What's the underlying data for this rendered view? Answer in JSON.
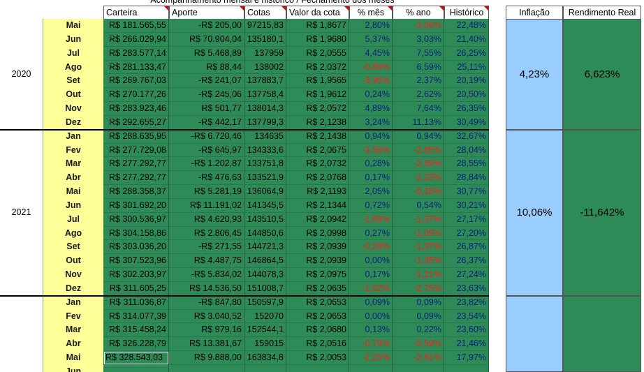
{
  "title": "Acompanhamento mensal e histórico / Fechamento dos meses",
  "headers": [
    "Carteira",
    "Aporte",
    "Cotas",
    "Valor da cota",
    "% mês",
    "% ano",
    "Histórico"
  ],
  "side_headers": [
    "Inflação",
    "Rendimento Real"
  ],
  "groups": [
    {
      "year": "2020",
      "inflacao": "4,23%",
      "rendimento_real": "6,623%",
      "rows": [
        {
          "month": "Mai",
          "cells": [
            "R$ 181.565,55",
            "-R$ 205,00",
            "97215,83",
            "R$ 1,8677",
            "2,80%",
            "-3,06%",
            "22,48%"
          ]
        },
        {
          "month": "Jun",
          "cells": [
            "R$ 266.029,94",
            "R$ 70.904,04",
            "135180,1",
            "R$ 1,9680",
            "5,37%",
            "3,03%",
            "21,40%"
          ]
        },
        {
          "month": "Jul",
          "cells": [
            "R$ 283.577,14",
            "R$ 5.468,89",
            "137959",
            "R$ 2,0555",
            "4,45%",
            "7,55%",
            "26,25%"
          ]
        },
        {
          "month": "Ago",
          "cells": [
            "R$ 281.133,47",
            "R$ 88,44",
            "138002",
            "R$ 2,0372",
            "-0,89%",
            "6,59%",
            "25,11%"
          ]
        },
        {
          "month": "Set",
          "cells": [
            "R$ 269.767,03",
            "-R$ 241,07",
            "137883,7",
            "R$ 1,9565",
            "-3,96%",
            "2,37%",
            "20,19%"
          ]
        },
        {
          "month": "Out",
          "cells": [
            "R$ 270.177,26",
            "-R$ 245,06",
            "137758,4",
            "R$ 1,9612",
            "0,24%",
            "2,62%",
            "20,50%"
          ]
        },
        {
          "month": "Nov",
          "cells": [
            "R$ 283.923,46",
            "R$ 501,77",
            "138014,3",
            "R$ 2,0572",
            "4,89%",
            "7,64%",
            "26,35%"
          ]
        },
        {
          "month": "Dez",
          "cells": [
            "R$ 292.655,27",
            "-R$ 442,17",
            "137799,3",
            "R$ 2,1238",
            "3,24%",
            "11,13%",
            "30,49%"
          ]
        }
      ]
    },
    {
      "year": "2021",
      "inflacao": "10,06%",
      "rendimento_real": "-11,642%",
      "rows": [
        {
          "month": "Jan",
          "cells": [
            "R$ 288.635,95",
            "-R$ 6.720,46",
            "134635",
            "R$ 2,1438",
            "0,94%",
            "0,94%",
            "32,67%"
          ]
        },
        {
          "month": "Fev",
          "cells": [
            "R$ 277.729,08",
            "-R$ 645,97",
            "134333,6",
            "R$ 2,0675",
            "-3,56%",
            "-2,65%",
            "28,04%"
          ]
        },
        {
          "month": "Mar",
          "cells": [
            "R$ 277.292,77",
            "-R$ 1.202,87",
            "133751,8",
            "R$ 2,0732",
            "0,28%",
            "-2,39%",
            "28,55%"
          ]
        },
        {
          "month": "Abr",
          "cells": [
            "R$ 277.292,77",
            "-R$ 476,63",
            "133521,9",
            "R$ 2,0768",
            "0,17%",
            "-2,23%",
            "28,84%"
          ]
        },
        {
          "month": "Mai",
          "cells": [
            "R$ 288.358,37",
            "R$ 5.281,19",
            "136064,9",
            "R$ 2,1193",
            "2,05%",
            "-0,18%",
            "30,77%"
          ]
        },
        {
          "month": "Jun",
          "cells": [
            "R$ 301.692,20",
            "R$ 11.191,02",
            "141345,5",
            "R$ 2,1344",
            "0,72%",
            "0,54%",
            "30,21%"
          ]
        },
        {
          "month": "Jul",
          "cells": [
            "R$ 300.536,97",
            "R$ 4.620,93",
            "143510,5",
            "R$ 2,0942",
            "-1,89%",
            "-1,37%",
            "27,17%"
          ]
        },
        {
          "month": "Ago",
          "cells": [
            "R$ 304.158,86",
            "R$ 2.806,45",
            "144850,6",
            "R$ 2,0998",
            "0,27%",
            "-1,09%",
            "27,20%"
          ]
        },
        {
          "month": "Set",
          "cells": [
            "R$ 303.036,20",
            "-R$ 271,55",
            "144721,3",
            "R$ 2,0939",
            "-0,28%",
            "-1,37%",
            "26,87%"
          ]
        },
        {
          "month": "Out",
          "cells": [
            "R$ 307.523,96",
            "R$ 4.487,75",
            "146864,5",
            "R$ 2,0939",
            "0,00%",
            "-1,35%",
            "26,37%"
          ]
        },
        {
          "month": "Nov",
          "cells": [
            "R$ 302.203,97",
            "-R$ 5.834,02",
            "144078,3",
            "R$ 2,0975",
            "0,17%",
            "-1,21%",
            "27,24%"
          ]
        },
        {
          "month": "Dez",
          "cells": [
            "R$ 311.605,25",
            "R$ 14.536,50",
            "151008,7",
            "R$ 2,0635",
            "-1,62%",
            "-2,75%",
            "23,63%"
          ]
        }
      ]
    },
    {
      "rows": [
        {
          "month": "Jan",
          "cells": [
            "R$ 311.036,87",
            "-R$ 847,80",
            "150597,9",
            "R$ 2,0653",
            "0,09%",
            "0,09%",
            "23,82%"
          ]
        },
        {
          "month": "Fev",
          "cells": [
            "R$ 314.077,39",
            "R$ 3.040,52",
            "152070",
            "R$ 2,0653",
            "0,00%",
            "0,09%",
            "23,54%"
          ]
        },
        {
          "month": "Mar",
          "cells": [
            "R$ 315.458,24",
            "R$ 979,16",
            "152544,1",
            "R$ 2,0680",
            "0,13%",
            "0,22%",
            "23,60%"
          ]
        },
        {
          "month": "Abr",
          "cells": [
            "R$ 326.228,79",
            "R$ 13.381,67",
            "159015",
            "R$ 2,0516",
            "-0,79%",
            "-0,59%",
            "21,46%"
          ]
        },
        {
          "month": "Mai",
          "cells": [
            "R$ 328.543,03",
            "R$ 9.888,00",
            "163834,8",
            "R$ 2,0053",
            "-2,25%",
            "-2,81%",
            "17,97%"
          ]
        },
        {
          "month": "Jun"
        }
      ]
    }
  ]
}
